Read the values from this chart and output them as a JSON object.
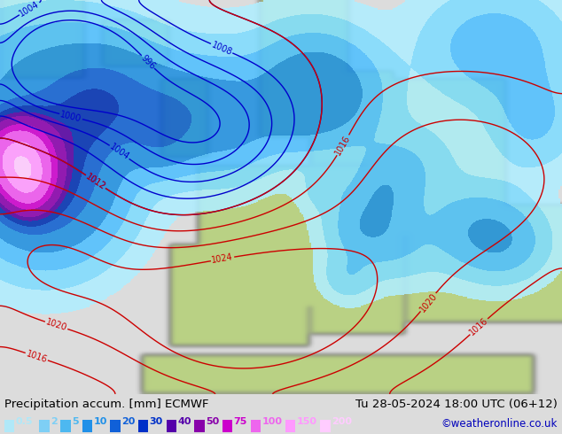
{
  "title_left": "Precipitation accum. [mm] ECMWF",
  "title_right": "Tu 28-05-2024 18:00 UTC (06+12)",
  "credit": "©weatheronline.co.uk",
  "legend_values": [
    "0.5",
    "2",
    "5",
    "10",
    "20",
    "30",
    "40",
    "50",
    "75",
    "100",
    "150",
    "200"
  ],
  "legend_colors": [
    "#b0e8f8",
    "#7ecff5",
    "#4db8f0",
    "#2090e8",
    "#1060d8",
    "#0030c8",
    "#5500aa",
    "#8800aa",
    "#cc00cc",
    "#ee66ee",
    "#ff99ff",
    "#ffccff"
  ],
  "bg_color": "#dcdcdc",
  "ocean_color": "#e8e8e8",
  "land_color_light": "#c8dca0",
  "land_color_green": "#a8c878",
  "bottom_bar_color": "#dcdcdc",
  "text_color": "#000000",
  "title_fontsize": 9.5,
  "credit_fontsize": 8.5,
  "legend_fontsize": 8.5,
  "pressure_blue_color": "#0000cc",
  "pressure_red_color": "#cc0000",
  "contour_linewidth": 1.0,
  "contour_fontsize": 7.0,
  "figwidth": 6.34,
  "figheight": 4.9,
  "dpi": 100
}
